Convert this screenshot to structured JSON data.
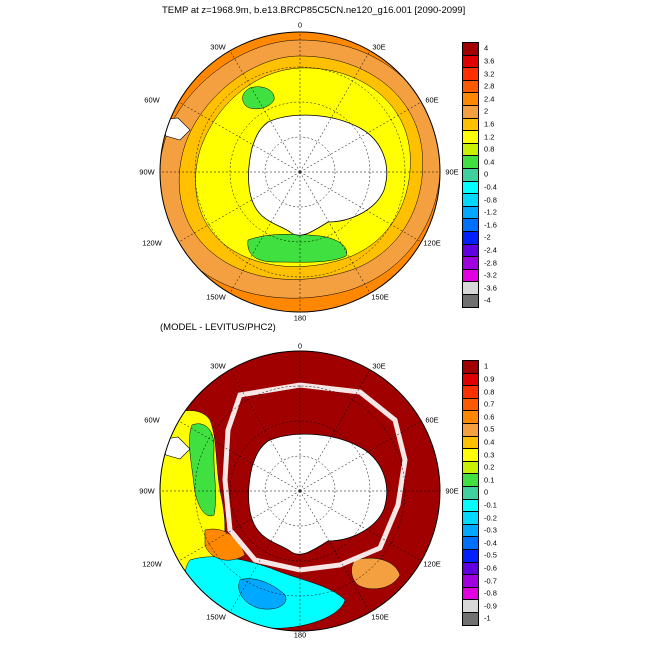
{
  "panels": [
    {
      "title": "TEMP at z=1968.9m, b.e13.BRCP85C5CN.ne120_g16.001 [2090-2099]",
      "lon_labels": {
        "top": "0",
        "top_left": "30W",
        "top_right": "30E",
        "upper_left": "60W",
        "upper_right": "60E",
        "left": "90W",
        "right": "90E",
        "lower_left": "120W",
        "lower_right": "120E",
        "bottom_left": "150W",
        "bottom_right": "150E",
        "bottom": "180"
      },
      "colorbar": {
        "labels": [
          "4",
          "3.6",
          "3.2",
          "2.8",
          "2.4",
          "2",
          "1.6",
          "1.2",
          "0.8",
          "0.4",
          "0",
          "-0.4",
          "-0.8",
          "-1.2",
          "-1.6",
          "-2",
          "-2.4",
          "-2.8",
          "-3.2",
          "-3.6",
          "-4"
        ],
        "colors": [
          "#a00000",
          "#e00000",
          "#ff3000",
          "#ff5a00",
          "#ff8800",
          "#f4a040",
          "#ffc000",
          "#ffff00",
          "#c8f000",
          "#40e040",
          "#40d0a0",
          "#00ffff",
          "#00d8ff",
          "#00a8ff",
          "#0070ff",
          "#0020ff",
          "#6000e0",
          "#a000e0",
          "#e000e0",
          "#d8d8d8",
          "#707070"
        ]
      }
    },
    {
      "title": "(MODEL - LEVITUS/PHC2)",
      "lon_labels": {
        "top": "0",
        "top_left": "30W",
        "top_right": "30E",
        "upper_left": "60W",
        "upper_right": "60E",
        "left": "90W",
        "right": "90E",
        "lower_left": "120W",
        "lower_right": "120E",
        "bottom_left": "150W",
        "bottom_right": "150E",
        "bottom": "180"
      },
      "colorbar": {
        "labels": [
          "1",
          "0.9",
          "0.8",
          "0.7",
          "0.6",
          "0.5",
          "0.4",
          "0.3",
          "0.2",
          "0.1",
          "0",
          "-0.1",
          "-0.2",
          "-0.3",
          "-0.4",
          "-0.5",
          "-0.6",
          "-0.7",
          "-0.8",
          "-0.9",
          "-1"
        ],
        "colors": [
          "#a00000",
          "#e00000",
          "#ff3000",
          "#ff5a00",
          "#ff8800",
          "#f4a040",
          "#ffc000",
          "#ffff00",
          "#c8f000",
          "#40e040",
          "#40d0a0",
          "#00ffff",
          "#00d8ff",
          "#00a8ff",
          "#0070ff",
          "#0020ff",
          "#6000e0",
          "#a000e0",
          "#e000e0",
          "#d8d8d8",
          "#707070"
        ]
      }
    }
  ]
}
